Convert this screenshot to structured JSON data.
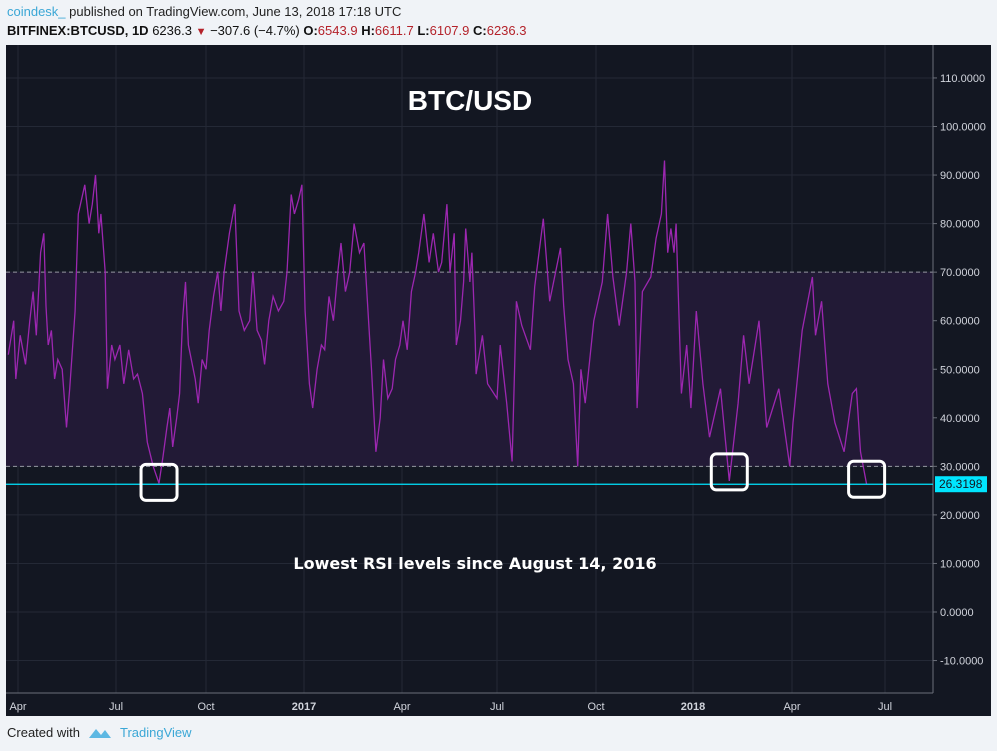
{
  "header": {
    "user": "coindesk_",
    "published": "published on TradingView.com, June 13, 2018 17:18 UTC",
    "symbol": "BITFINEX:BTCUSD, 1D",
    "last": "6236.3",
    "change": "−307.6 (−4.7%)",
    "open_label": "O:",
    "open": "6543.9",
    "high_label": "H:",
    "high": "6611.7",
    "low_label": "L:",
    "low": "6107.9",
    "close_label": "C:",
    "close": "6236.3",
    "down_icon": "triangle-down-icon"
  },
  "footer": {
    "created_with": "Created with",
    "brand": "TradingView",
    "logo_icon": "tradingview-logo-icon"
  },
  "colors": {
    "background": "#131722",
    "line": "#9c27b0",
    "band": "#221a36",
    "level_line": "#00e5ff",
    "accent_red": "#b4222a"
  },
  "chart_data": {
    "type": "line",
    "title": "BTC/USD",
    "annotation": "Lowest RSI levels since August 14, 2016",
    "ylim": [
      -17,
      117
    ],
    "y_ticks": [
      "110.0000",
      "100.0000",
      "90.0000",
      "80.0000",
      "70.0000",
      "60.0000",
      "50.0000",
      "40.0000",
      "30.0000",
      "20.0000",
      "10.0000",
      "0.0000",
      "-10.0000"
    ],
    "x_ticks": [
      {
        "label": "Apr",
        "date": "2016-04-01",
        "bold": false
      },
      {
        "label": "Jul",
        "date": "2016-07-01",
        "bold": false
      },
      {
        "label": "Oct",
        "date": "2016-10-01",
        "bold": false
      },
      {
        "label": "2017",
        "date": "2017-01-01",
        "bold": true
      },
      {
        "label": "Apr",
        "date": "2017-04-01",
        "bold": false
      },
      {
        "label": "Jul",
        "date": "2017-07-01",
        "bold": false
      },
      {
        "label": "Oct",
        "date": "2017-10-01",
        "bold": false
      },
      {
        "label": "2018",
        "date": "2018-01-01",
        "bold": true
      },
      {
        "label": "Apr",
        "date": "2018-04-01",
        "bold": false
      },
      {
        "label": "Jul",
        "date": "2018-07-01",
        "bold": false
      }
    ],
    "band": [
      30,
      70
    ],
    "level": {
      "value": 26.3198,
      "label": "26.3198"
    },
    "highlighted_lows": [
      "2016-08-14",
      "2018-02-03",
      "2018-06-13"
    ],
    "grid": true,
    "series": [
      {
        "values": [
          [
            "2016-03-23",
            53
          ],
          [
            "2016-03-28",
            60
          ],
          [
            "2016-03-30",
            48
          ],
          [
            "2016-04-03",
            57
          ],
          [
            "2016-04-08",
            51
          ],
          [
            "2016-04-12",
            60
          ],
          [
            "2016-04-15",
            66
          ],
          [
            "2016-04-18",
            57
          ],
          [
            "2016-04-22",
            74
          ],
          [
            "2016-04-25",
            78
          ],
          [
            "2016-04-27",
            63
          ],
          [
            "2016-04-29",
            55
          ],
          [
            "2016-05-02",
            58
          ],
          [
            "2016-05-05",
            48
          ],
          [
            "2016-05-08",
            52
          ],
          [
            "2016-05-12",
            50
          ],
          [
            "2016-05-16",
            38
          ],
          [
            "2016-05-19",
            46
          ],
          [
            "2016-05-24",
            62
          ],
          [
            "2016-05-27",
            82
          ],
          [
            "2016-06-02",
            88
          ],
          [
            "2016-06-06",
            80
          ],
          [
            "2016-06-09",
            84
          ],
          [
            "2016-06-12",
            90
          ],
          [
            "2016-06-15",
            78
          ],
          [
            "2016-06-17",
            82
          ],
          [
            "2016-06-21",
            70
          ],
          [
            "2016-06-23",
            46
          ],
          [
            "2016-06-27",
            55
          ],
          [
            "2016-06-30",
            52
          ],
          [
            "2016-07-05",
            55
          ],
          [
            "2016-07-09",
            47
          ],
          [
            "2016-07-14",
            54
          ],
          [
            "2016-07-19",
            48
          ],
          [
            "2016-07-23",
            49
          ],
          [
            "2016-07-28",
            45
          ],
          [
            "2016-08-02",
            35
          ],
          [
            "2016-08-08",
            30
          ],
          [
            "2016-08-14",
            26.5
          ],
          [
            "2016-08-18",
            32
          ],
          [
            "2016-08-22",
            38
          ],
          [
            "2016-08-25",
            42
          ],
          [
            "2016-08-28",
            34
          ],
          [
            "2016-09-01",
            40
          ],
          [
            "2016-09-04",
            45
          ],
          [
            "2016-09-07",
            60
          ],
          [
            "2016-09-10",
            68
          ],
          [
            "2016-09-13",
            55
          ],
          [
            "2016-09-16",
            52
          ],
          [
            "2016-09-20",
            48
          ],
          [
            "2016-09-23",
            43
          ],
          [
            "2016-09-27",
            52
          ],
          [
            "2016-10-01",
            50
          ],
          [
            "2016-10-04",
            58
          ],
          [
            "2016-10-08",
            65
          ],
          [
            "2016-10-12",
            70
          ],
          [
            "2016-10-15",
            62
          ],
          [
            "2016-10-18",
            70
          ],
          [
            "2016-10-23",
            78
          ],
          [
            "2016-10-28",
            84
          ],
          [
            "2016-11-01",
            62
          ],
          [
            "2016-11-06",
            58
          ],
          [
            "2016-11-11",
            60
          ],
          [
            "2016-11-14",
            70
          ],
          [
            "2016-11-18",
            58
          ],
          [
            "2016-11-22",
            56
          ],
          [
            "2016-11-25",
            51
          ],
          [
            "2016-11-29",
            60
          ],
          [
            "2016-12-03",
            65
          ],
          [
            "2016-12-08",
            62
          ],
          [
            "2016-12-13",
            64
          ],
          [
            "2016-12-16",
            70
          ],
          [
            "2016-12-20",
            86
          ],
          [
            "2016-12-23",
            82
          ],
          [
            "2016-12-27",
            85
          ],
          [
            "2016-12-30",
            88
          ],
          [
            "2017-01-02",
            62
          ],
          [
            "2017-01-06",
            47
          ],
          [
            "2017-01-09",
            42
          ],
          [
            "2017-01-13",
            50
          ],
          [
            "2017-01-17",
            55
          ],
          [
            "2017-01-20",
            54
          ],
          [
            "2017-01-24",
            65
          ],
          [
            "2017-01-28",
            60
          ],
          [
            "2017-02-01",
            70
          ],
          [
            "2017-02-04",
            76
          ],
          [
            "2017-02-08",
            66
          ],
          [
            "2017-02-12",
            70
          ],
          [
            "2017-02-16",
            80
          ],
          [
            "2017-02-21",
            74
          ],
          [
            "2017-02-25",
            76
          ],
          [
            "2017-03-04",
            50
          ],
          [
            "2017-03-08",
            33
          ],
          [
            "2017-03-12",
            40
          ],
          [
            "2017-03-15",
            52
          ],
          [
            "2017-03-19",
            44
          ],
          [
            "2017-03-23",
            46
          ],
          [
            "2017-03-26",
            52
          ],
          [
            "2017-03-30",
            55
          ],
          [
            "2017-04-02",
            60
          ],
          [
            "2017-04-06",
            54
          ],
          [
            "2017-04-10",
            66
          ],
          [
            "2017-04-14",
            70
          ],
          [
            "2017-04-17",
            74
          ],
          [
            "2017-04-22",
            82
          ],
          [
            "2017-04-27",
            72
          ],
          [
            "2017-05-01",
            78
          ],
          [
            "2017-05-06",
            70
          ],
          [
            "2017-05-09",
            72
          ],
          [
            "2017-05-14",
            84
          ],
          [
            "2017-05-17",
            70
          ],
          [
            "2017-05-21",
            78
          ],
          [
            "2017-05-23",
            55
          ],
          [
            "2017-05-27",
            60
          ],
          [
            "2017-05-30",
            68
          ],
          [
            "2017-06-01",
            79
          ],
          [
            "2017-06-05",
            68
          ],
          [
            "2017-06-07",
            74
          ],
          [
            "2017-06-10",
            57
          ],
          [
            "2017-06-11",
            49
          ],
          [
            "2017-06-17",
            57
          ],
          [
            "2017-06-22",
            47
          ],
          [
            "2017-07-01",
            44
          ],
          [
            "2017-07-04",
            55
          ],
          [
            "2017-07-10",
            43
          ],
          [
            "2017-07-15",
            31
          ],
          [
            "2017-07-19",
            64
          ],
          [
            "2017-07-24",
            59
          ],
          [
            "2017-08-01",
            54
          ],
          [
            "2017-08-05",
            67
          ],
          [
            "2017-08-13",
            81
          ],
          [
            "2017-08-19",
            64
          ],
          [
            "2017-08-29",
            75
          ],
          [
            "2017-09-01",
            63
          ],
          [
            "2017-09-05",
            52
          ],
          [
            "2017-09-10",
            47
          ],
          [
            "2017-09-14",
            30
          ],
          [
            "2017-09-17",
            50
          ],
          [
            "2017-09-21",
            43
          ],
          [
            "2017-09-29",
            60
          ],
          [
            "2017-10-07",
            68
          ],
          [
            "2017-10-12",
            82
          ],
          [
            "2017-10-17",
            69
          ],
          [
            "2017-10-23",
            59
          ],
          [
            "2017-10-30",
            70
          ],
          [
            "2017-11-03",
            80
          ],
          [
            "2017-11-07",
            68
          ],
          [
            "2017-11-09",
            42
          ],
          [
            "2017-11-14",
            66
          ],
          [
            "2017-11-22",
            69
          ],
          [
            "2017-11-27",
            77
          ],
          [
            "2017-12-02",
            82
          ],
          [
            "2017-12-05",
            93
          ],
          [
            "2017-12-08",
            74
          ],
          [
            "2017-12-11",
            79
          ],
          [
            "2017-12-14",
            74
          ],
          [
            "2017-12-16",
            80
          ],
          [
            "2017-12-21",
            45
          ],
          [
            "2017-12-26",
            55
          ],
          [
            "2017-12-30",
            42
          ],
          [
            "2018-01-04",
            62
          ],
          [
            "2018-01-10",
            47
          ],
          [
            "2018-01-16",
            36
          ],
          [
            "2018-01-26",
            46
          ],
          [
            "2018-02-03",
            27
          ],
          [
            "2018-02-11",
            43
          ],
          [
            "2018-02-16",
            57
          ],
          [
            "2018-02-21",
            47
          ],
          [
            "2018-03-02",
            60
          ],
          [
            "2018-03-09",
            38
          ],
          [
            "2018-03-20",
            46
          ],
          [
            "2018-03-30",
            30
          ],
          [
            "2018-04-02",
            39
          ],
          [
            "2018-04-11",
            58
          ],
          [
            "2018-04-21",
            69
          ],
          [
            "2018-04-24",
            57
          ],
          [
            "2018-04-30",
            64
          ],
          [
            "2018-05-06",
            47
          ],
          [
            "2018-05-13",
            39
          ],
          [
            "2018-05-22",
            33
          ],
          [
            "2018-05-30",
            45
          ],
          [
            "2018-06-03",
            46
          ],
          [
            "2018-06-07",
            33
          ],
          [
            "2018-06-13",
            26.3198
          ]
        ]
      }
    ]
  }
}
